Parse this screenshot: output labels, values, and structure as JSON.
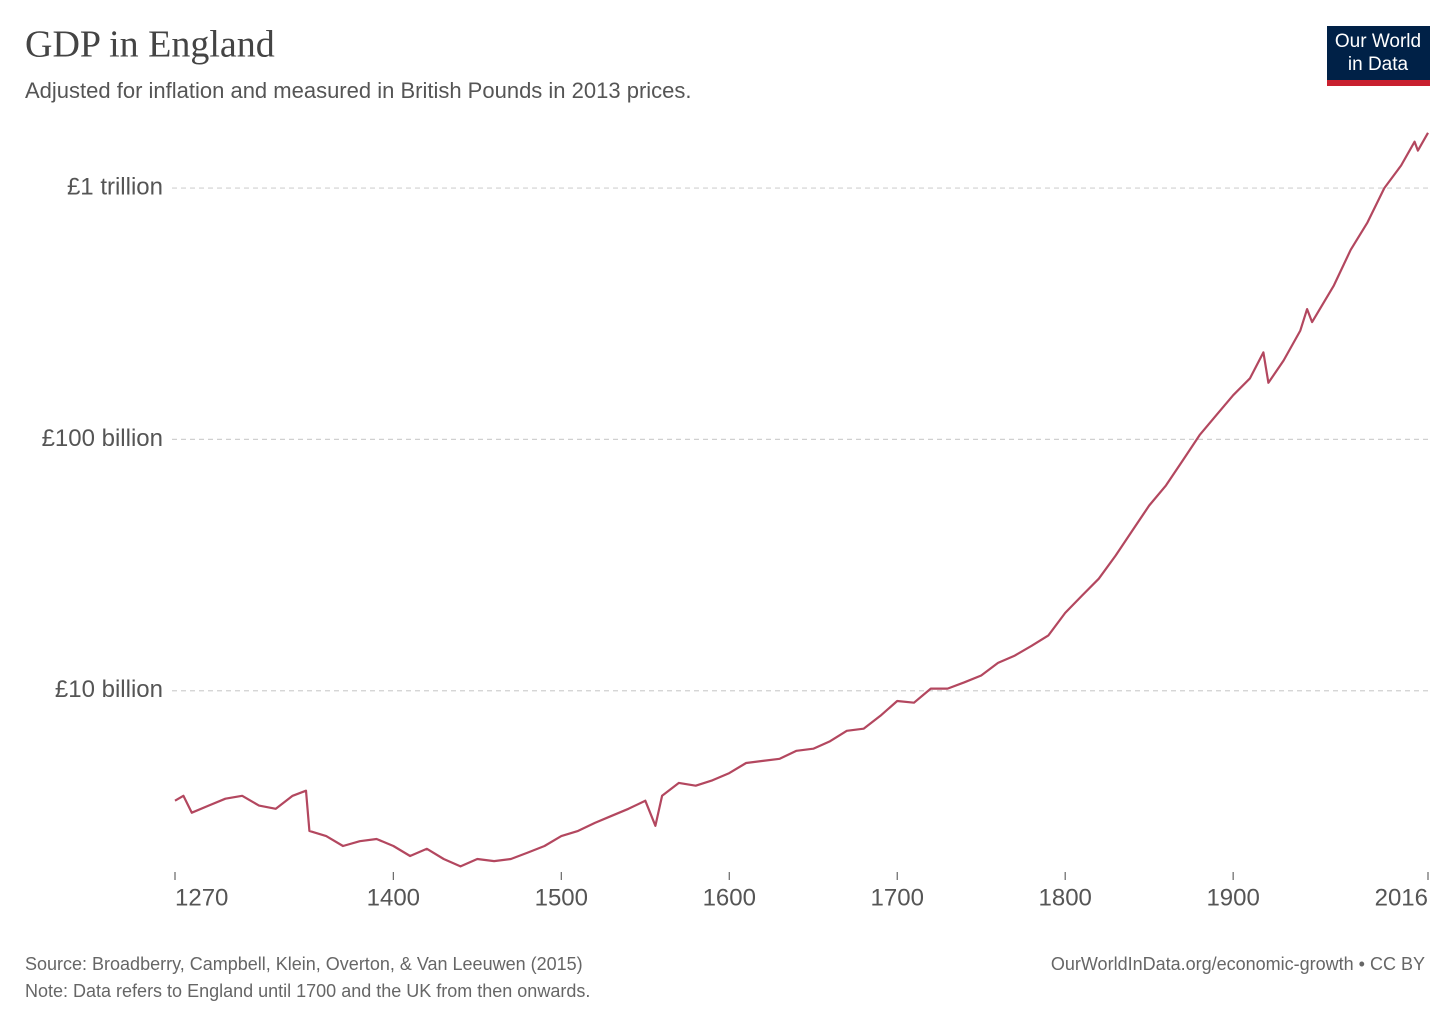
{
  "chart_data": {
    "type": "line",
    "title": "GDP in England",
    "subtitle": "Adjusted for inflation and measured in British Pounds in 2013 prices.",
    "logo": {
      "line1": "Our World",
      "line2": "in Data"
    },
    "source": "Source: Broadberry, Campbell, Klein, Overton, & Van Leeuwen (2015)",
    "note": "Note: Data refers to England until 1700 and the UK from then onwards.",
    "credit": "OurWorldInData.org/economic-growth • CC BY",
    "color": "#b3475f",
    "log_scale": true,
    "grid": true,
    "xlim": [
      1270,
      2016
    ],
    "xticks": [
      1270,
      1400,
      1500,
      1600,
      1700,
      1800,
      1900,
      2016
    ],
    "ylim": [
      1900000000.0,
      1750000000000.0
    ],
    "yticks": [
      {
        "value": 10000000000.0,
        "label": "£10 billion"
      },
      {
        "value": 100000000000.0,
        "label": "£100 billion"
      },
      {
        "value": 1000000000000.0,
        "label": "£1 trillion"
      }
    ],
    "x": [
      1270,
      1275,
      1280,
      1290,
      1300,
      1310,
      1320,
      1330,
      1340,
      1348,
      1350,
      1360,
      1370,
      1380,
      1390,
      1400,
      1410,
      1420,
      1430,
      1440,
      1450,
      1460,
      1470,
      1480,
      1490,
      1500,
      1510,
      1520,
      1530,
      1540,
      1550,
      1556,
      1560,
      1570,
      1580,
      1590,
      1600,
      1610,
      1620,
      1630,
      1640,
      1650,
      1660,
      1670,
      1680,
      1690,
      1700,
      1710,
      1720,
      1730,
      1740,
      1750,
      1760,
      1770,
      1780,
      1790,
      1800,
      1810,
      1820,
      1830,
      1840,
      1850,
      1860,
      1870,
      1880,
      1890,
      1900,
      1910,
      1918,
      1921,
      1930,
      1940,
      1944,
      1947,
      1960,
      1970,
      1980,
      1990,
      2000,
      2008,
      2010,
      2016
    ],
    "values": [
      3650000000.0,
      3820000000.0,
      3270000000.0,
      3490000000.0,
      3720000000.0,
      3820000000.0,
      3490000000.0,
      3390000000.0,
      3820000000.0,
      4000000000.0,
      2770000000.0,
      2640000000.0,
      2410000000.0,
      2520000000.0,
      2570000000.0,
      2410000000.0,
      2200000000.0,
      2350000000.0,
      2140000000.0,
      2000000000.0,
      2140000000.0,
      2100000000.0,
      2140000000.0,
      2270000000.0,
      2410000000.0,
      2640000000.0,
      2770000000.0,
      2980000000.0,
      3180000000.0,
      3390000000.0,
      3650000000.0,
      2900000000.0,
      3820000000.0,
      4300000000.0,
      4190000000.0,
      4400000000.0,
      4700000000.0,
      5160000000.0,
      5260000000.0,
      5360000000.0,
      5770000000.0,
      5880000000.0,
      6300000000.0,
      6930000000.0,
      7060000000.0,
      7950000000.0,
      9100000000.0,
      8960000000.0,
      10200000000.0,
      10200000000.0,
      10800000000.0,
      11500000000.0,
      12900000000.0,
      13800000000.0,
      15100000000.0,
      16600000000.0,
      20400000000.0,
      23900000000.0,
      27900000000.0,
      34500000000.0,
      43400000000.0,
      54600000000.0,
      65600000000.0,
      82500000000.0,
      104000000000.0,
      125000000000.0,
      150000000000.0,
      175000000000.0,
      222000000000.0,
      168000000000.0,
      206000000000.0,
      271000000000.0,
      330000000000.0,
      293000000000.0,
      410000000000.0,
      568000000000.0,
      730000000000.0,
      1000000000000.0,
      1230000000000.0,
      1530000000000.0,
      1410000000000.0,
      1660000000000.0
    ]
  }
}
